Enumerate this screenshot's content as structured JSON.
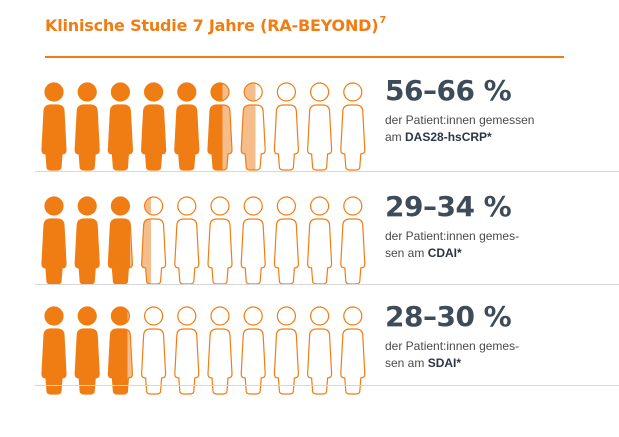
{
  "title": "Klinische Studie 7 Jahre (RA-BEYOND)",
  "title_ref": "7",
  "colors": {
    "accent": "#f07d14",
    "light": "#f5bd8a",
    "text": "#3e4c5a"
  },
  "rows": [
    {
      "percent": "56–66 %",
      "line1": "der Patient:innen gemessen",
      "line2_prefix": "am ",
      "measure": "DAS28-hsCRP*",
      "fill_from": 56,
      "fill_to": 66
    },
    {
      "percent": "29–34 %",
      "line1": "der Patient:innen gemes-",
      "line2_prefix": "sen am ",
      "measure": "CDAI*",
      "fill_from": 29,
      "fill_to": 34
    },
    {
      "percent": "28–30 %",
      "line1": "der Patient:innen gemes-",
      "line2_prefix": "sen am ",
      "measure": "SDAI*",
      "fill_from": 28,
      "fill_to": 30
    }
  ]
}
